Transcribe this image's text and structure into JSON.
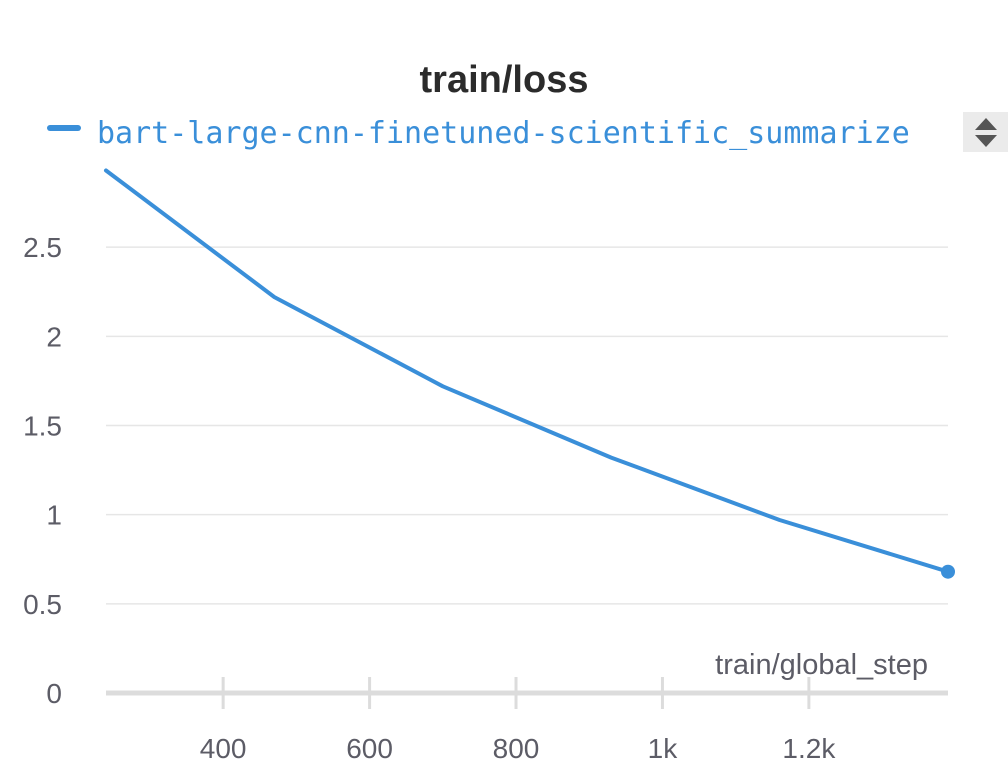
{
  "chart_data": {
    "type": "line",
    "title": "train/loss",
    "xlabel": "train/global_step",
    "ylabel": "",
    "xlim": [
      240,
      1390
    ],
    "ylim": [
      0,
      3.0
    ],
    "x_ticks": [
      {
        "value": 400,
        "label": "400"
      },
      {
        "value": 600,
        "label": "600"
      },
      {
        "value": 800,
        "label": "800"
      },
      {
        "value": 1000,
        "label": "1k"
      },
      {
        "value": 1200,
        "label": "1.2k"
      }
    ],
    "y_ticks": [
      {
        "value": 0,
        "label": "0"
      },
      {
        "value": 0.5,
        "label": "0.5"
      },
      {
        "value": 1,
        "label": "1"
      },
      {
        "value": 1.5,
        "label": "1.5"
      },
      {
        "value": 2,
        "label": "2"
      },
      {
        "value": 2.5,
        "label": "2.5"
      }
    ],
    "grid": true,
    "legend_position": "top-left",
    "series": [
      {
        "name": "bart-large-cnn-finetuned-scientific_summarize",
        "color": "#3a8fd9",
        "x": [
          240,
          470,
          700,
          930,
          1160,
          1390
        ],
        "y": [
          2.93,
          2.22,
          1.72,
          1.32,
          0.97,
          0.68
        ]
      }
    ]
  },
  "legend_scroll": {
    "up_icon": "triangle-up-icon",
    "down_icon": "triangle-down-icon"
  }
}
